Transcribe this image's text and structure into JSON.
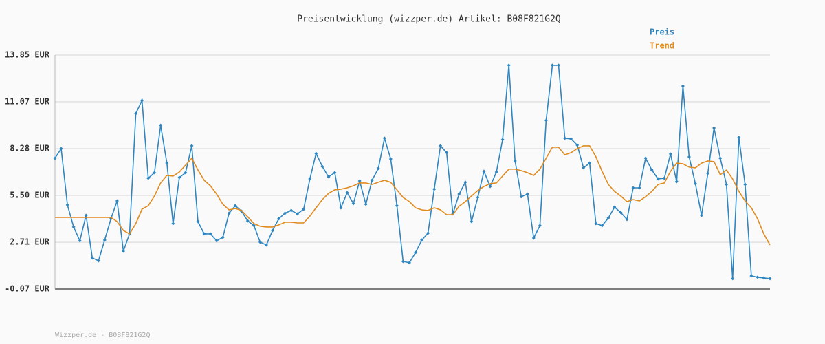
{
  "chart_data": {
    "type": "line",
    "title": "Preisentwicklung (wizzper.de) Artikel: B08F821G2Q",
    "footer": "Wizzper.de - B08F821G2Q",
    "ylim": [
      -0.07,
      13.85
    ],
    "yticks": [
      {
        "value": -0.07,
        "label": "-0.07 EUR"
      },
      {
        "value": 2.71,
        "label": "2.71 EUR"
      },
      {
        "value": 5.5,
        "label": "5.50 EUR"
      },
      {
        "value": 8.28,
        "label": "8.28 EUR"
      },
      {
        "value": 11.07,
        "label": "11.07 EUR"
      },
      {
        "value": 13.85,
        "label": "13.85 EUR"
      }
    ],
    "grid": true,
    "legend": "top-right",
    "series": [
      {
        "name": "Preis",
        "color": "#2e86c1",
        "markers": true,
        "values": [
          7.71,
          8.28,
          4.93,
          3.62,
          2.8,
          4.31,
          1.78,
          1.61,
          2.84,
          4.11,
          5.17,
          2.18,
          3.21,
          10.37,
          11.15,
          6.52,
          6.85,
          9.67,
          7.42,
          3.82,
          6.56,
          6.85,
          8.45,
          3.94,
          3.21,
          3.21,
          2.8,
          3.0,
          4.44,
          4.89,
          4.56,
          3.98,
          3.7,
          2.72,
          2.55,
          3.41,
          4.11,
          4.44,
          4.6,
          4.4,
          4.68,
          6.48,
          7.99,
          7.22,
          6.6,
          6.85,
          4.76,
          5.66,
          5.01,
          6.36,
          4.97,
          6.4,
          7.1,
          8.9,
          7.67,
          4.89,
          1.57,
          1.49,
          2.1,
          2.84,
          3.25,
          5.87,
          8.45,
          8.04,
          4.4,
          5.58,
          6.28,
          3.94,
          5.38,
          6.93,
          6.03,
          6.89,
          8.82,
          13.24,
          7.55,
          5.42,
          5.58,
          2.96,
          3.7,
          9.96,
          13.24,
          13.24,
          8.9,
          8.86,
          8.49,
          7.14,
          7.42,
          3.82,
          3.7,
          4.15,
          4.8,
          4.48,
          4.07,
          5.95,
          5.95,
          7.71,
          7.01,
          6.48,
          6.52,
          7.96,
          6.32,
          12.01,
          7.79,
          6.2,
          4.31,
          6.81,
          9.51,
          7.71,
          6.15,
          0.55,
          8.94,
          6.15,
          0.71,
          0.63,
          0.59,
          0.55
        ]
      },
      {
        "name": "Trend",
        "color": "#e08a1e",
        "markers": false,
        "values": [
          4.19,
          4.19,
          4.19,
          4.19,
          4.19,
          4.19,
          4.19,
          4.19,
          4.19,
          4.19,
          3.94,
          3.41,
          3.21,
          3.82,
          4.68,
          4.89,
          5.46,
          6.24,
          6.69,
          6.65,
          6.89,
          7.3,
          7.71,
          7.01,
          6.4,
          6.07,
          5.58,
          4.97,
          4.64,
          4.72,
          4.6,
          4.23,
          3.82,
          3.66,
          3.62,
          3.62,
          3.74,
          3.9,
          3.9,
          3.86,
          3.86,
          4.27,
          4.76,
          5.25,
          5.62,
          5.83,
          5.87,
          5.95,
          6.07,
          6.24,
          6.24,
          6.15,
          6.28,
          6.4,
          6.28,
          5.83,
          5.38,
          5.13,
          4.76,
          4.64,
          4.6,
          4.76,
          4.64,
          4.35,
          4.35,
          4.85,
          5.13,
          5.46,
          5.79,
          6.03,
          6.2,
          6.24,
          6.65,
          7.06,
          7.06,
          6.97,
          6.85,
          6.69,
          7.06,
          7.71,
          8.37,
          8.37,
          7.91,
          8.04,
          8.28,
          8.45,
          8.45,
          7.79,
          6.93,
          6.15,
          5.74,
          5.46,
          5.13,
          5.25,
          5.17,
          5.42,
          5.74,
          6.15,
          6.24,
          6.93,
          7.42,
          7.38,
          7.18,
          7.14,
          7.42,
          7.55,
          7.51,
          6.73,
          7.01,
          6.48,
          5.74,
          5.17,
          4.76,
          4.11,
          3.21,
          2.55
        ]
      }
    ]
  }
}
